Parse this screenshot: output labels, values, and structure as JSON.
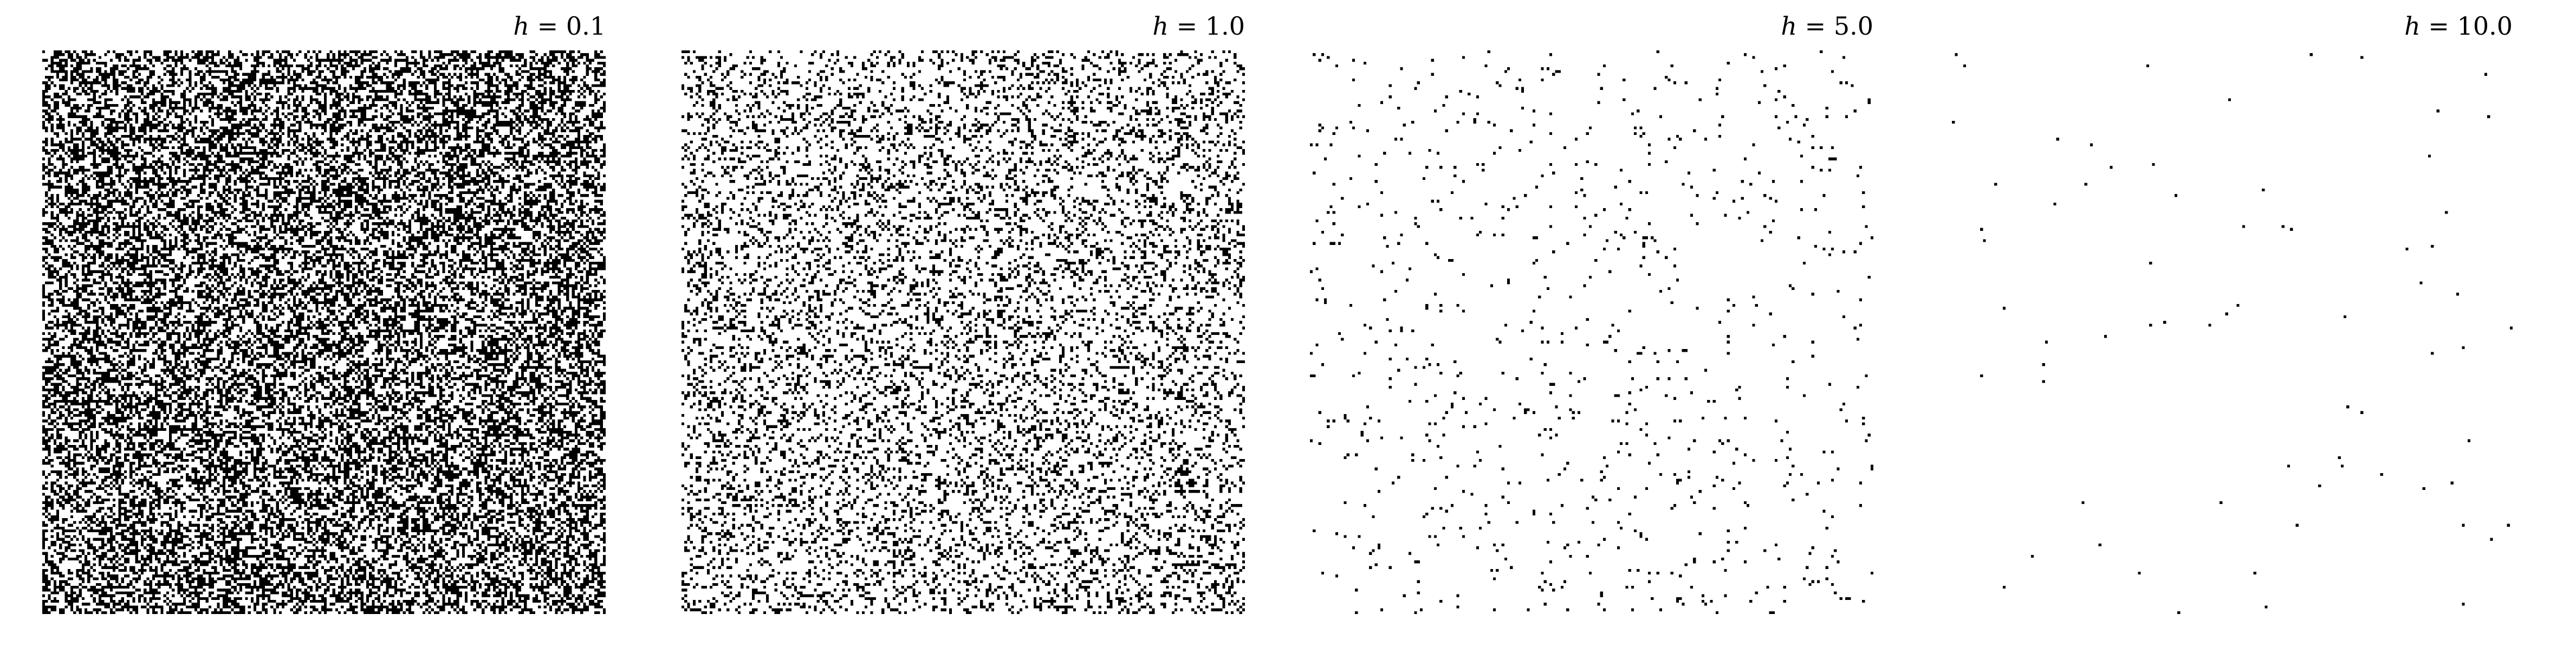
{
  "figure": {
    "background_color": "#ffffff",
    "site_color": "#000000",
    "lattice_resolution": 200
  },
  "panels": [
    {
      "title_var": "h",
      "title_eq": " = 0.1",
      "h": 0.1,
      "black_fraction": 0.48
    },
    {
      "title_var": "h",
      "title_eq": " = 1.0",
      "h": 1.0,
      "black_fraction": 0.22
    },
    {
      "title_var": "h",
      "title_eq": " = 5.0",
      "h": 5.0,
      "black_fraction": 0.022
    },
    {
      "title_var": "h",
      "title_eq": " = 10.0",
      "h": 10.0,
      "black_fraction": 0.0018
    }
  ]
}
